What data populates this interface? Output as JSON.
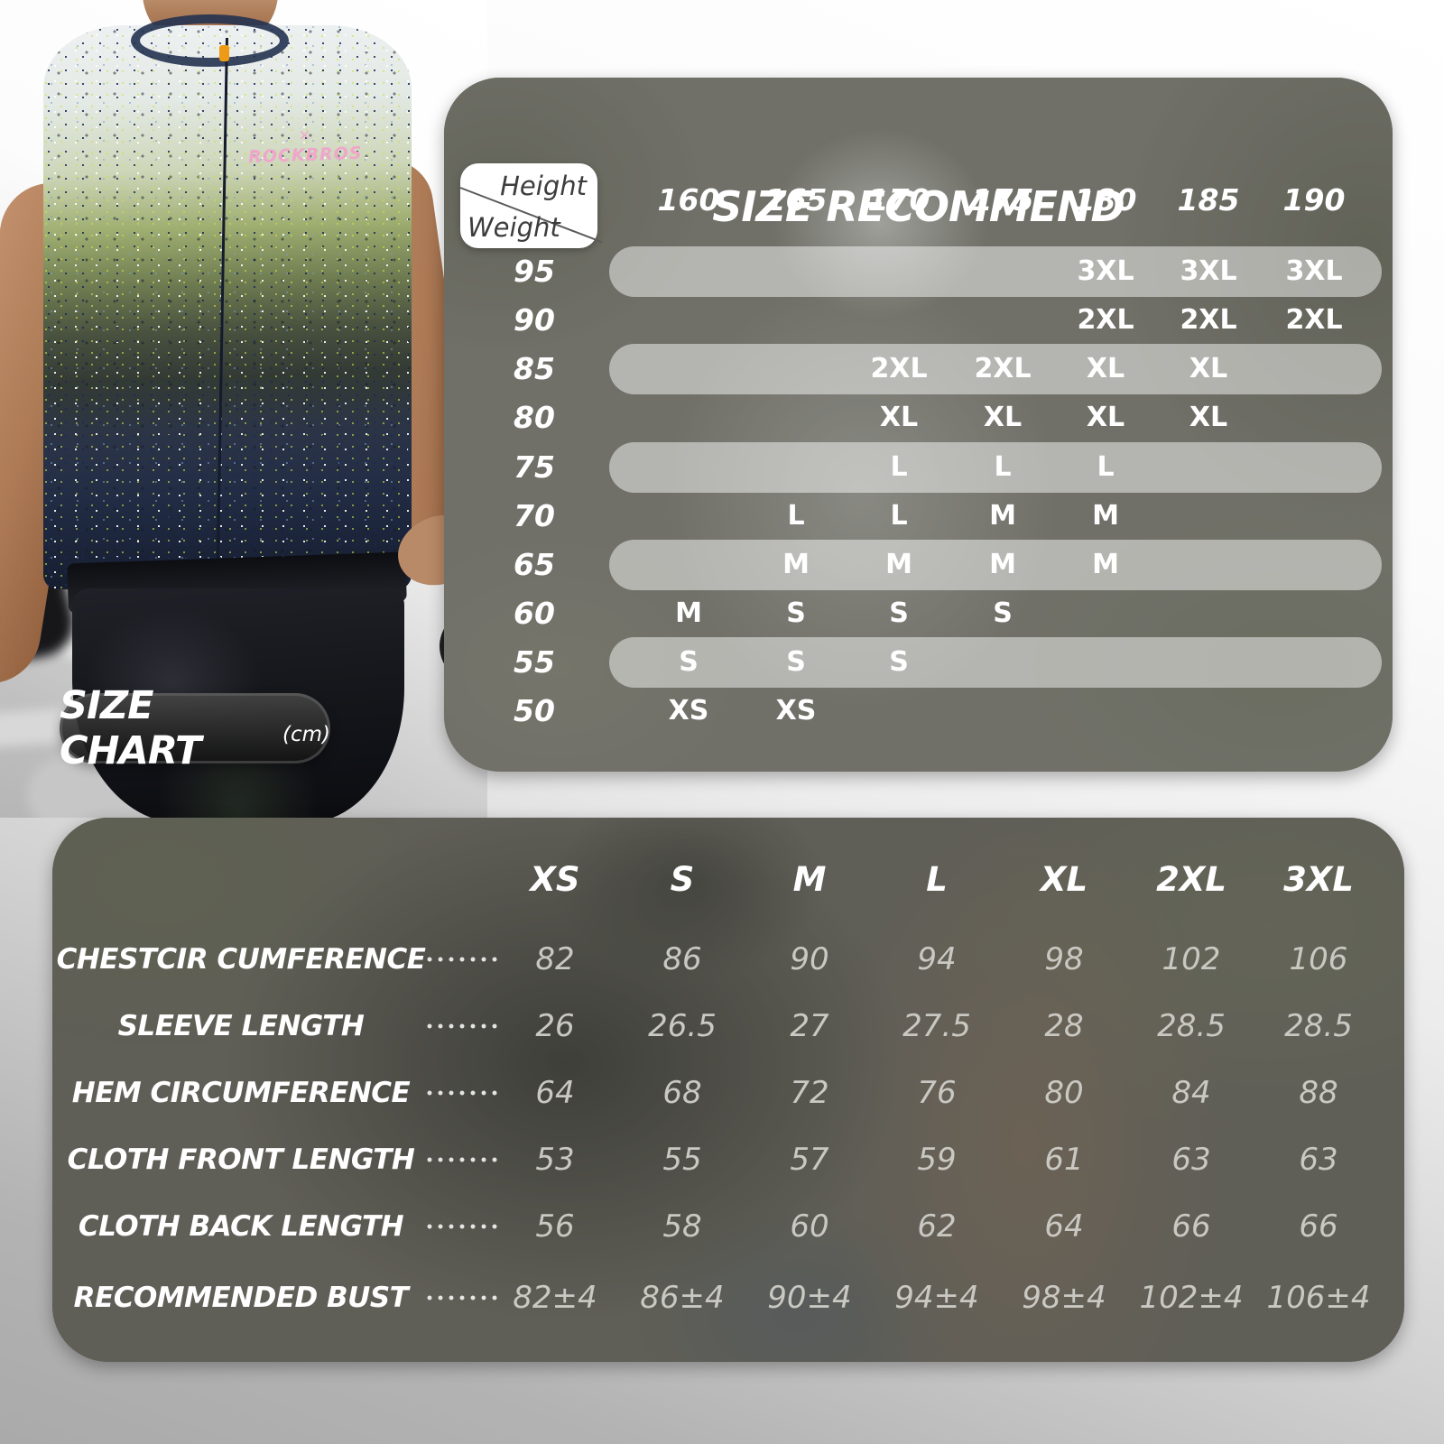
{
  "size_chart_label": {
    "title": "SIZE CHART",
    "unit": "(cm)"
  },
  "photo": {
    "jersey_logo_mark": "×",
    "jersey_logo_text": "ROCKBROS"
  },
  "colors": {
    "accent_orange": "#ef9a17",
    "logo_pink": "#f0a6cb",
    "row_band": "rgba(255,255,255,0.48)",
    "value_gray": "#c9c8c2"
  },
  "size_recommend": {
    "title": "SIZE RECOMMEND",
    "axis": {
      "height_label": "Height",
      "weight_label": "Weight"
    },
    "heights": [
      "160",
      "165",
      "170",
      "175",
      "180",
      "185",
      "190"
    ],
    "rows": [
      {
        "weight": "95",
        "band": true,
        "cells": [
          "",
          "",
          "",
          "",
          "3XL",
          "3XL",
          "3XL"
        ]
      },
      {
        "weight": "90",
        "band": false,
        "cells": [
          "",
          "",
          "",
          "",
          "2XL",
          "2XL",
          "2XL"
        ]
      },
      {
        "weight": "85",
        "band": true,
        "cells": [
          "",
          "",
          "2XL",
          "2XL",
          "XL",
          "XL",
          ""
        ]
      },
      {
        "weight": "80",
        "band": false,
        "cells": [
          "",
          "",
          "XL",
          "XL",
          "XL",
          "XL",
          ""
        ]
      },
      {
        "weight": "75",
        "band": true,
        "cells": [
          "",
          "",
          "L",
          "L",
          "L",
          "",
          ""
        ]
      },
      {
        "weight": "70",
        "band": false,
        "cells": [
          "",
          "L",
          "L",
          "M",
          "M",
          "",
          ""
        ]
      },
      {
        "weight": "65",
        "band": true,
        "cells": [
          "",
          "M",
          "M",
          "M",
          "M",
          "",
          ""
        ]
      },
      {
        "weight": "60",
        "band": false,
        "cells": [
          "M",
          "S",
          "S",
          "S",
          "",
          "",
          ""
        ]
      },
      {
        "weight": "55",
        "band": true,
        "cells": [
          "S",
          "S",
          "S",
          "",
          "",
          "",
          ""
        ]
      },
      {
        "weight": "50",
        "band": false,
        "cells": [
          "XS",
          "XS",
          "",
          "",
          "",
          "",
          ""
        ]
      }
    ]
  },
  "measurements": {
    "columns": [
      "XS",
      "S",
      "M",
      "L",
      "XL",
      "2XL",
      "3XL"
    ],
    "rows": [
      {
        "label": "CHESTCIR CUMFERENCE",
        "values": [
          "82",
          "86",
          "90",
          "94",
          "98",
          "102",
          "106"
        ]
      },
      {
        "label": "SLEEVE LENGTH",
        "values": [
          "26",
          "26.5",
          "27",
          "27.5",
          "28",
          "28.5",
          "28.5"
        ]
      },
      {
        "label": "HEM CIRCUMFERENCE",
        "values": [
          "64",
          "68",
          "72",
          "76",
          "80",
          "84",
          "88"
        ]
      },
      {
        "label": "CLOTH FRONT LENGTH",
        "values": [
          "53",
          "55",
          "57",
          "59",
          "61",
          "63",
          "63"
        ]
      },
      {
        "label": "CLOTH BACK LENGTH",
        "values": [
          "56",
          "58",
          "60",
          "62",
          "64",
          "66",
          "66"
        ]
      },
      {
        "label": "RECOMMENDED BUST",
        "values": [
          "82±4",
          "86±4",
          "90±4",
          "94±4",
          "98±4",
          "102±4",
          "106±4"
        ]
      }
    ]
  }
}
